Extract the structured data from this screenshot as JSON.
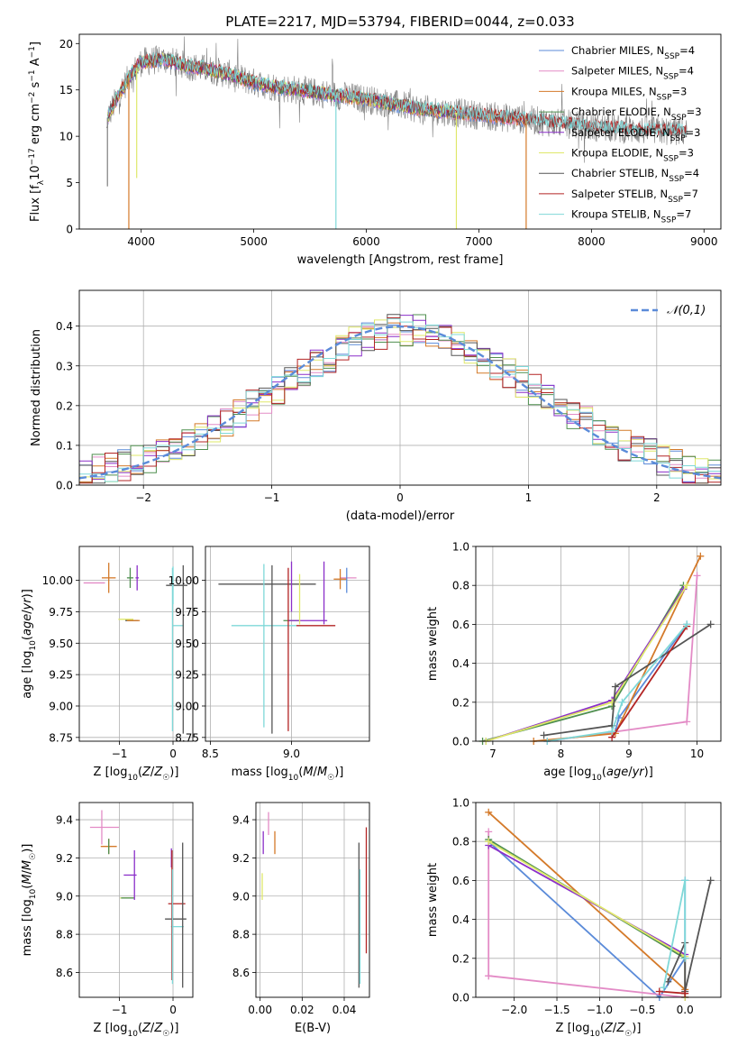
{
  "title": "PLATE=2217, MJD=53794, FIBERID=0044, z=0.033",
  "colors": {
    "Chabrier MILES": "#5b8bd9",
    "Salpeter MILES": "#e38bc6",
    "Kroupa MILES": "#d47a2a",
    "Chabrier ELODIE": "#4f8f4f",
    "Salpeter ELODIE": "#8b2fc9",
    "Kroupa ELODIE": "#dfe86a",
    "Chabrier STELIB": "#555555",
    "Salpeter STELIB": "#b32424",
    "Kroupa STELIB": "#7fd8d8",
    "data": "#7f7f7f",
    "normal": "#5b8bd9"
  },
  "chart_data": [
    {
      "id": "spectrum",
      "type": "line",
      "xlabel": "wavelength [Angstrom, rest frame]",
      "ylabel": "Flux [f_λ 10^-17 erg cm^-2 s^-1 A^-1]",
      "ylabel_parts": [
        "Flux [f",
        "λ",
        "10",
        "−17",
        " erg cm",
        "−2",
        " s",
        "−1",
        " A",
        "−1",
        "]"
      ],
      "xlim": [
        3450,
        9150
      ],
      "ylim": [
        0,
        21
      ],
      "xticks": [
        4000,
        5000,
        6000,
        7000,
        8000,
        9000
      ],
      "yticks": [
        0,
        5,
        10,
        15,
        20
      ],
      "legend_position": "top-right",
      "legend": [
        {
          "name": "Chabrier MILES",
          "base": "Chabrier MILES, N",
          "sub": "SSP",
          "n": "=4"
        },
        {
          "name": "Salpeter MILES",
          "base": "Salpeter MILES, N",
          "sub": "SSP",
          "n": "=4"
        },
        {
          "name": "Kroupa MILES",
          "base": "Kroupa MILES, N",
          "sub": "SSP",
          "n": "=3"
        },
        {
          "name": "Chabrier ELODIE",
          "base": "Chabrier ELODIE, N",
          "sub": "SSP",
          "n": "=3"
        },
        {
          "name": "Salpeter ELODIE",
          "base": "Salpeter ELODIE, N",
          "sub": "SSP",
          "n": "=3"
        },
        {
          "name": "Kroupa ELODIE",
          "base": "Kroupa ELODIE, N",
          "sub": "SSP",
          "n": "=3"
        },
        {
          "name": "Chabrier STELIB",
          "base": "Chabrier STELIB, N",
          "sub": "SSP",
          "n": "=4"
        },
        {
          "name": "Salpeter STELIB",
          "base": "Salpeter STELIB, N",
          "sub": "SSP",
          "n": "=7"
        },
        {
          "name": "Kroupa STELIB",
          "base": "Kroupa STELIB, N",
          "sub": "SSP",
          "n": "=7"
        }
      ],
      "continuum": [
        [
          3700,
          12.0
        ],
        [
          3800,
          14.5
        ],
        [
          3900,
          16.5
        ],
        [
          4000,
          18.0
        ],
        [
          4200,
          18.3
        ],
        [
          4400,
          17.6
        ],
        [
          4600,
          17.2
        ],
        [
          4800,
          16.6
        ],
        [
          5000,
          15.8
        ],
        [
          5200,
          15.3
        ],
        [
          5500,
          14.8
        ],
        [
          6000,
          14.0
        ],
        [
          6500,
          12.9
        ],
        [
          7000,
          12.3
        ],
        [
          7500,
          11.7
        ],
        [
          8000,
          11.0
        ],
        [
          8500,
          10.6
        ],
        [
          8850,
          10.5
        ]
      ],
      "data_range": [
        3690,
        8850
      ],
      "model_ranges": {
        "MILES": [
          3700,
          7420
        ],
        "ELODIE": [
          3700,
          6820
        ],
        "STELIB": [
          3700,
          8850
        ]
      },
      "dips": [
        {
          "x": 3700,
          "y": 4.6,
          "series": "data"
        },
        {
          "x": 3890,
          "y": 0,
          "series": "Kroupa MILES"
        },
        {
          "x": 3960,
          "y": 5.5,
          "series": "Kroupa ELODIE"
        },
        {
          "x": 5730,
          "y": 0,
          "series": "Kroupa STELIB"
        },
        {
          "x": 6800,
          "y": 0,
          "series": "Kroupa ELODIE"
        },
        {
          "x": 7420,
          "y": 0,
          "series": "Kroupa MILES"
        }
      ]
    },
    {
      "id": "residuals",
      "type": "step-histogram",
      "xlabel": "(data-model)/error",
      "ylabel": "Normed distribution",
      "xlim": [
        -2.5,
        2.5
      ],
      "ylim": [
        0,
        0.49
      ],
      "xticks": [
        -2,
        -1,
        0,
        1,
        2
      ],
      "yticks": [
        0.0,
        0.1,
        0.2,
        0.3,
        0.4
      ],
      "grid": true,
      "legend_position": "top-right",
      "reference": {
        "label": "𝒩(0,1)",
        "mu": 0,
        "sigma": 1
      },
      "bins": {
        "start": -2.5,
        "width": 0.1,
        "count": 50
      },
      "envelope": [
        0.03,
        0.04,
        0.045,
        0.05,
        0.06,
        0.07,
        0.08,
        0.09,
        0.1,
        0.12,
        0.14,
        0.16,
        0.18,
        0.2,
        0.22,
        0.24,
        0.26,
        0.28,
        0.3,
        0.32,
        0.34,
        0.36,
        0.37,
        0.38,
        0.39,
        0.39,
        0.39,
        0.38,
        0.37,
        0.36,
        0.34,
        0.32,
        0.3,
        0.28,
        0.26,
        0.24,
        0.22,
        0.2,
        0.18,
        0.16,
        0.14,
        0.12,
        0.1,
        0.09,
        0.08,
        0.06,
        0.05,
        0.04,
        0.035,
        0.03
      ]
    },
    {
      "id": "age-vs-Z",
      "type": "errorbar",
      "xlabel": "Z [log10(Z/Z☉)]",
      "ylabel": "age [log10(age/yr)]",
      "xlim": [
        -1.75,
        0.37
      ],
      "ylim": [
        8.72,
        10.27
      ],
      "xticks": [
        -1,
        0
      ],
      "yticks": [
        8.75,
        9.0,
        9.25,
        9.5,
        9.75,
        10.0
      ],
      "grid": true,
      "points": [
        {
          "s": "Salpeter MILES",
          "x": -1.47,
          "y": 9.98,
          "xerr": 0.2,
          "yerr": 0.0
        },
        {
          "s": "Kroupa MILES",
          "x": -1.2,
          "y": 10.02,
          "xerr": 0.13,
          "yerr": 0.12
        },
        {
          "s": "Chabrier ELODIE",
          "x": -0.8,
          "y": 10.02,
          "xerr": 0.06,
          "yerr": 0.08
        },
        {
          "s": "Salpeter ELODIE",
          "x": -0.67,
          "y": 10.02,
          "xerr": 0.03,
          "yerr": 0.1
        },
        {
          "s": "Kroupa ELODIE",
          "x": -0.88,
          "y": 9.69,
          "xerr": 0.14,
          "yerr": 0.0
        },
        {
          "s": "Chabrier STELIB",
          "x": -0.77,
          "y": 9.68,
          "xerr": 0.12,
          "yerr": 0.0
        },
        {
          "s": "Kroupa MILES",
          "x": -0.74,
          "y": 9.68,
          "xerr": 0.12,
          "yerr": 0.0
        },
        {
          "s": "Chabrier STELIB",
          "x": 0.07,
          "y": 9.96,
          "xerr": 0.2,
          "yerr": 0.0
        },
        {
          "s": "Kroupa STELIB",
          "x": 0.0,
          "y": 9.96,
          "xerr": 0.0,
          "yerr": 0.15
        },
        {
          "s": "Kroupa STELIB",
          "x": 0.1,
          "y": 9.64,
          "xerr": 0.1,
          "yerr": 0.0
        },
        {
          "s": "Chabrier STELIB",
          "x": 0.19,
          "y": 9.45,
          "xerr": 0.0,
          "yerr": 0.67
        },
        {
          "s": "Kroupa STELIB",
          "x": -0.01,
          "y": 9.45,
          "xerr": 0.0,
          "yerr": 0.65
        }
      ]
    },
    {
      "id": "age-vs-mass",
      "type": "errorbar",
      "xlabel": "mass [log10(M/M☉)]",
      "ylabel": "",
      "xlim": [
        8.47,
        9.48
      ],
      "ylim": [
        8.72,
        10.27
      ],
      "xticks": [
        8.5,
        9.0
      ],
      "yticks": [
        8.75,
        9.0,
        9.25,
        9.5,
        9.75,
        10.0
      ],
      "grid": true,
      "points": [
        {
          "s": "Chabrier STELIB",
          "x": 8.85,
          "y": 9.97,
          "xerr": 0.3,
          "yerr": 0.0
        },
        {
          "s": "Kroupa STELIB",
          "x": 8.83,
          "y": 9.64,
          "xerr": 0.2,
          "yerr": 0.0
        },
        {
          "s": "Chabrier ELODIE",
          "x": 9.0,
          "y": 9.68,
          "xerr": 0.05,
          "yerr": 0.0
        },
        {
          "s": "Salpeter ELODIE",
          "x": 9.1,
          "y": 9.68,
          "xerr": 0.12,
          "yerr": 0.0
        },
        {
          "s": "Salpeter STELIB",
          "x": 9.15,
          "y": 9.64,
          "xerr": 0.12,
          "yerr": 0.0
        },
        {
          "s": "Salpeter MILES",
          "x": 9.35,
          "y": 10.02,
          "xerr": 0.05,
          "yerr": 0.0
        },
        {
          "s": "Kroupa MILES",
          "x": 9.3,
          "y": 10.01,
          "xerr": 0.04,
          "yerr": 0.08
        },
        {
          "s": "Kroupa STELIB",
          "x": 8.83,
          "y": 9.48,
          "xerr": 0.0,
          "yerr": 0.65
        },
        {
          "s": "Chabrier STELIB",
          "x": 8.88,
          "y": 9.45,
          "xerr": 0.0,
          "yerr": 0.67
        },
        {
          "s": "Salpeter STELIB",
          "x": 8.98,
          "y": 9.45,
          "xerr": 0.0,
          "yerr": 0.65
        },
        {
          "s": "Salpeter ELODIE",
          "x": 9.0,
          "y": 9.95,
          "xerr": 0.0,
          "yerr": 0.2
        },
        {
          "s": "Kroupa ELODIE",
          "x": 9.05,
          "y": 9.85,
          "xerr": 0.0,
          "yerr": 0.2
        },
        {
          "s": "Salpeter ELODIE",
          "x": 9.2,
          "y": 9.9,
          "xerr": 0.0,
          "yerr": 0.25
        },
        {
          "s": "Chabrier MILES",
          "x": 9.34,
          "y": 10.0,
          "xerr": 0.0,
          "yerr": 0.1
        }
      ]
    },
    {
      "id": "weight-vs-age",
      "type": "line",
      "xlabel": "age [log10(age/yr)]",
      "ylabel": "mass weight",
      "xlim": [
        6.75,
        10.35
      ],
      "ylim": [
        0.0,
        1.0
      ],
      "xticks": [
        7,
        8,
        9,
        10
      ],
      "yticks": [
        0.0,
        0.2,
        0.4,
        0.6,
        0.8,
        1.0
      ],
      "grid": true,
      "series": [
        {
          "name": "Chabrier MILES",
          "x": [
            7.8,
            8.8,
            8.85,
            9.85
          ],
          "y": [
            0.0,
            0.05,
            0.12,
            0.6
          ]
        },
        {
          "name": "Salpeter MILES",
          "x": [
            7.8,
            9.85,
            10.0
          ],
          "y": [
            0.0,
            0.1,
            0.85
          ]
        },
        {
          "name": "Kroupa MILES",
          "x": [
            7.6,
            8.8,
            10.05
          ],
          "y": [
            0.0,
            0.04,
            0.95
          ]
        },
        {
          "name": "Chabrier ELODIE",
          "x": [
            6.85,
            8.75,
            9.8
          ],
          "y": [
            0.0,
            0.18,
            0.8
          ]
        },
        {
          "name": "Salpeter ELODIE",
          "x": [
            6.9,
            8.75,
            9.8
          ],
          "y": [
            0.0,
            0.21,
            0.78
          ]
        },
        {
          "name": "Kroupa ELODIE",
          "x": [
            6.9,
            8.75,
            9.85
          ],
          "y": [
            0.0,
            0.2,
            0.8
          ]
        },
        {
          "name": "Chabrier STELIB",
          "x": [
            7.75,
            8.75,
            8.8,
            10.2
          ],
          "y": [
            0.03,
            0.08,
            0.28,
            0.6
          ]
        },
        {
          "name": "Salpeter STELIB",
          "x": [
            8.75,
            9.85
          ],
          "y": [
            0.02,
            0.59
          ]
        },
        {
          "name": "Kroupa STELIB",
          "x": [
            7.8,
            8.75,
            8.9,
            9.85
          ],
          "y": [
            0.0,
            0.05,
            0.2,
            0.6
          ]
        }
      ]
    },
    {
      "id": "mass-vs-Z",
      "type": "errorbar",
      "xlabel": "Z [log10(Z/Z☉)]",
      "ylabel": "mass [log10(M/M☉)]",
      "xlim": [
        -1.75,
        0.37
      ],
      "ylim": [
        8.47,
        9.49
      ],
      "xticks": [
        -1,
        0
      ],
      "yticks": [
        8.6,
        8.8,
        9.0,
        9.2,
        9.4
      ],
      "grid": true,
      "points": [
        {
          "s": "Salpeter MILES",
          "x": -1.28,
          "y": 9.36,
          "xerr": 0.27,
          "yerr": 0.0
        },
        {
          "s": "Kroupa MILES",
          "x": -1.2,
          "y": 9.26,
          "xerr": 0.15,
          "yerr": 0.04
        },
        {
          "s": "Salpeter MILES",
          "x": -1.33,
          "y": 9.36,
          "xerr": 0.0,
          "yerr": 0.09
        },
        {
          "s": "Chabrier ELODIE",
          "x": -1.2,
          "y": 9.26,
          "xerr": 0.0,
          "yerr": 0.04
        },
        {
          "s": "Salpeter ELODIE",
          "x": -0.8,
          "y": 9.11,
          "xerr": 0.12,
          "yerr": 0.0
        },
        {
          "s": "Kroupa ELODIE",
          "x": -0.85,
          "y": 8.99,
          "xerr": 0.14,
          "yerr": 0.0
        },
        {
          "s": "Chabrier ELODIE",
          "x": -0.85,
          "y": 8.99,
          "xerr": 0.12,
          "yerr": 0.0
        },
        {
          "s": "Salpeter ELODIE",
          "x": -0.72,
          "y": 9.11,
          "xerr": 0.0,
          "yerr": 0.13
        },
        {
          "s": "Chabrier STELIB",
          "x": 0.05,
          "y": 8.88,
          "xerr": 0.2,
          "yerr": 0.0
        },
        {
          "s": "Salpeter STELIB",
          "x": 0.07,
          "y": 8.96,
          "xerr": 0.16,
          "yerr": 0.0
        },
        {
          "s": "Kroupa STELIB",
          "x": 0.08,
          "y": 8.84,
          "xerr": 0.12,
          "yerr": 0.0
        },
        {
          "s": "Salpeter ELODIE",
          "x": -0.03,
          "y": 9.2,
          "xerr": 0.0,
          "yerr": 0.05
        },
        {
          "s": "Salpeter STELIB",
          "x": -0.02,
          "y": 8.9,
          "xerr": 0.0,
          "yerr": 0.34
        },
        {
          "s": "Chabrier STELIB",
          "x": 0.18,
          "y": 8.9,
          "xerr": 0.0,
          "yerr": 0.38
        },
        {
          "s": "Kroupa STELIB",
          "x": -0.01,
          "y": 8.84,
          "xerr": 0.0,
          "yerr": 0.3
        }
      ]
    },
    {
      "id": "mass-vs-ebv",
      "type": "errorbar",
      "xlabel": "E(B-V)",
      "ylabel": "",
      "xlim": [
        -0.002,
        0.052
      ],
      "ylim": [
        8.47,
        9.49
      ],
      "xticks": [
        0.0,
        0.02,
        0.04
      ],
      "yticks": [
        8.6,
        8.8,
        9.0,
        9.2,
        9.4
      ],
      "grid": true,
      "points": [
        {
          "s": "Kroupa ELODIE",
          "x": 0.001,
          "y": 9.05,
          "xerr": 0.0,
          "yerr": 0.07
        },
        {
          "s": "Salpeter ELODIE",
          "x": 0.0015,
          "y": 9.28,
          "xerr": 0.0,
          "yerr": 0.06
        },
        {
          "s": "Salpeter MILES",
          "x": 0.004,
          "y": 9.38,
          "xerr": 0.0,
          "yerr": 0.06
        },
        {
          "s": "Kroupa MILES",
          "x": 0.007,
          "y": 9.28,
          "xerr": 0.0,
          "yerr": 0.06
        },
        {
          "s": "Chabrier STELIB",
          "x": 0.047,
          "y": 8.9,
          "xerr": 0.0,
          "yerr": 0.38
        },
        {
          "s": "Kroupa STELIB",
          "x": 0.0475,
          "y": 8.84,
          "xerr": 0.0,
          "yerr": 0.3
        },
        {
          "s": "Salpeter STELIB",
          "x": 0.0505,
          "y": 9.03,
          "xerr": 0.0,
          "yerr": 0.33
        }
      ]
    },
    {
      "id": "weight-vs-Z",
      "type": "line",
      "xlabel": "Z [log10(Z/Z☉)]",
      "ylabel": "mass weight",
      "xlim": [
        -2.45,
        0.42
      ],
      "ylim": [
        0.0,
        1.0
      ],
      "xticks": [
        -2.0,
        -1.5,
        -1.0,
        -0.5,
        0.0
      ],
      "yticks": [
        0.0,
        0.2,
        0.4,
        0.6,
        0.8,
        1.0
      ],
      "grid": true,
      "series": [
        {
          "name": "Chabrier MILES",
          "x": [
            -2.3,
            -0.3,
            0.0,
            0.0
          ],
          "y": [
            0.8,
            0.0,
            0.2,
            0.6
          ]
        },
        {
          "name": "Salpeter MILES",
          "x": [
            -2.3,
            -2.3,
            0.0,
            -2.3
          ],
          "y": [
            0.85,
            0.11,
            0.0,
            0.11
          ]
        },
        {
          "name": "Kroupa MILES",
          "x": [
            -2.3,
            0.0,
            0.0
          ],
          "y": [
            0.95,
            0.04,
            0.0
          ]
        },
        {
          "name": "Chabrier ELODIE",
          "x": [
            -2.3,
            0.0,
            0.0
          ],
          "y": [
            0.81,
            0.2,
            0.0
          ]
        },
        {
          "name": "Salpeter ELODIE",
          "x": [
            -2.3,
            0.0,
            0.0
          ],
          "y": [
            0.78,
            0.22,
            0.0
          ]
        },
        {
          "name": "Kroupa ELODIE",
          "x": [
            -2.3,
            0.0,
            0.0
          ],
          "y": [
            0.8,
            0.21,
            0.0
          ]
        },
        {
          "name": "Chabrier STELIB",
          "x": [
            -0.2,
            0.0,
            0.0,
            0.3
          ],
          "y": [
            0.08,
            0.28,
            0.03,
            0.6
          ]
        },
        {
          "name": "Salpeter STELIB",
          "x": [
            -0.3,
            0.0
          ],
          "y": [
            0.03,
            0.02
          ]
        },
        {
          "name": "Kroupa STELIB",
          "x": [
            -0.25,
            0.0,
            0.0
          ],
          "y": [
            0.05,
            0.6,
            0.2
          ]
        }
      ]
    }
  ]
}
